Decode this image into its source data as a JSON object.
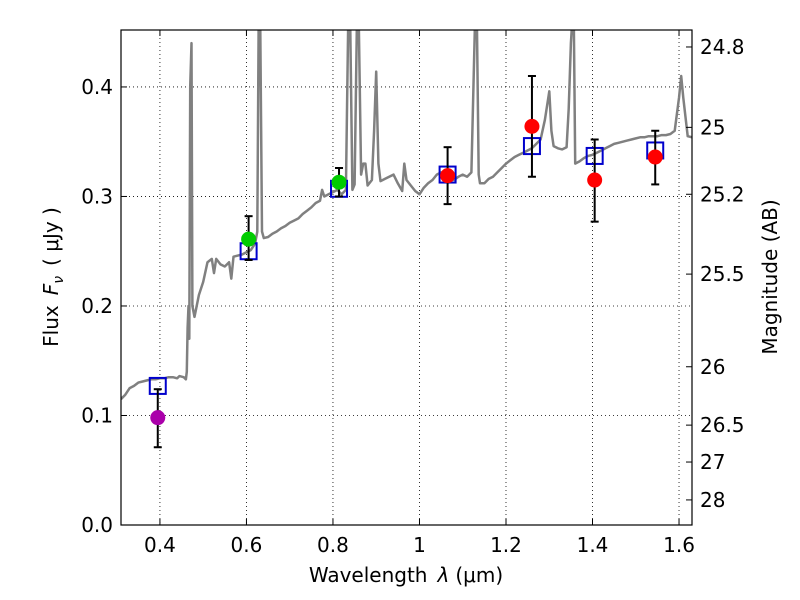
{
  "chart_data": {
    "type": "scatter",
    "xlabel_prefix": "Wavelength",
    "xlabel_symbol": "λ",
    "xlabel_unit": "(μm)",
    "ylabel_prefix": "Flux",
    "ylabel_symbol": "F",
    "ylabel_subscript": "ν",
    "ylabel_unit": "( μJy )",
    "y2label": "Magnitude (AB)",
    "xlim": [
      0.31,
      1.63
    ],
    "ylim": [
      0.0,
      0.452
    ],
    "xticks": [
      0.4,
      0.6,
      0.8,
      1.0,
      1.2,
      1.4,
      1.6
    ],
    "xtick_labels": [
      "0.4",
      "0.6",
      "0.8",
      "1",
      "1.2",
      "1.4",
      "1.6"
    ],
    "yticks": [
      0.0,
      0.1,
      0.2,
      0.3,
      0.4
    ],
    "ytick_labels": [
      "0.0",
      "0.1",
      "0.2",
      "0.3",
      "0.4"
    ],
    "y2ticks": [
      {
        "label": "24.8",
        "flux": 0.4365
      },
      {
        "label": "25",
        "flux": 0.3631
      },
      {
        "label": "25.2",
        "flux": 0.302
      },
      {
        "label": "25.5",
        "flux": 0.2291
      },
      {
        "label": "26",
        "flux": 0.1445
      },
      {
        "label": "26.5",
        "flux": 0.0912
      },
      {
        "label": "27",
        "flux": 0.0575
      },
      {
        "label": "28",
        "flux": 0.0229
      }
    ],
    "grid": true,
    "colors": {
      "model": "#808080",
      "model_points": "#0000cc",
      "uv": "#aa00aa",
      "optical": "#00cc00",
      "nir": "#ff0000",
      "errorbar": "#000000"
    },
    "model_points": [
      {
        "x": 0.395,
        "y": 0.127
      },
      {
        "x": 0.605,
        "y": 0.25
      },
      {
        "x": 0.814,
        "y": 0.307
      },
      {
        "x": 1.065,
        "y": 0.32
      },
      {
        "x": 1.26,
        "y": 0.346
      },
      {
        "x": 1.405,
        "y": 0.337
      },
      {
        "x": 1.545,
        "y": 0.342
      }
    ],
    "observations": [
      {
        "x": 0.395,
        "y": 0.098,
        "ylo": 0.071,
        "yhi": 0.124,
        "group": "uv"
      },
      {
        "x": 0.605,
        "y": 0.261,
        "ylo": 0.242,
        "yhi": 0.282,
        "group": "optical"
      },
      {
        "x": 0.814,
        "y": 0.313,
        "ylo": 0.3,
        "yhi": 0.326,
        "group": "optical"
      },
      {
        "x": 1.065,
        "y": 0.319,
        "ylo": 0.293,
        "yhi": 0.345,
        "group": "nir"
      },
      {
        "x": 1.26,
        "y": 0.364,
        "ylo": 0.318,
        "yhi": 0.41,
        "group": "nir"
      },
      {
        "x": 1.405,
        "y": 0.315,
        "ylo": 0.277,
        "yhi": 0.352,
        "group": "nir"
      },
      {
        "x": 1.545,
        "y": 0.336,
        "ylo": 0.311,
        "yhi": 0.36,
        "group": "nir"
      }
    ],
    "model_spectrum": [
      [
        0.31,
        0.115
      ],
      [
        0.32,
        0.119
      ],
      [
        0.33,
        0.125
      ],
      [
        0.34,
        0.127
      ],
      [
        0.35,
        0.13
      ],
      [
        0.36,
        0.131
      ],
      [
        0.37,
        0.132
      ],
      [
        0.38,
        0.133
      ],
      [
        0.39,
        0.133
      ],
      [
        0.4,
        0.134
      ],
      [
        0.41,
        0.134
      ],
      [
        0.42,
        0.135
      ],
      [
        0.43,
        0.135
      ],
      [
        0.44,
        0.134
      ],
      [
        0.445,
        0.136
      ],
      [
        0.455,
        0.135
      ],
      [
        0.46,
        0.133
      ],
      [
        0.462,
        0.14
      ],
      [
        0.464,
        0.18
      ],
      [
        0.466,
        0.2
      ],
      [
        0.468,
        0.17
      ],
      [
        0.47,
        0.4
      ],
      [
        0.473,
        0.44
      ],
      [
        0.475,
        0.2
      ],
      [
        0.48,
        0.19
      ],
      [
        0.49,
        0.21
      ],
      [
        0.5,
        0.222
      ],
      [
        0.51,
        0.24
      ],
      [
        0.52,
        0.243
      ],
      [
        0.525,
        0.23
      ],
      [
        0.53,
        0.243
      ],
      [
        0.54,
        0.238
      ],
      [
        0.55,
        0.236
      ],
      [
        0.56,
        0.24
      ],
      [
        0.565,
        0.225
      ],
      [
        0.57,
        0.245
      ],
      [
        0.58,
        0.246
      ],
      [
        0.59,
        0.247
      ],
      [
        0.6,
        0.249
      ],
      [
        0.61,
        0.251
      ],
      [
        0.62,
        0.257
      ],
      [
        0.625,
        0.268
      ],
      [
        0.628,
        0.452
      ],
      [
        0.632,
        0.452
      ],
      [
        0.636,
        0.268
      ],
      [
        0.64,
        0.262
      ],
      [
        0.65,
        0.263
      ],
      [
        0.66,
        0.266
      ],
      [
        0.67,
        0.268
      ],
      [
        0.68,
        0.271
      ],
      [
        0.69,
        0.273
      ],
      [
        0.7,
        0.276
      ],
      [
        0.71,
        0.278
      ],
      [
        0.72,
        0.28
      ],
      [
        0.73,
        0.284
      ],
      [
        0.74,
        0.287
      ],
      [
        0.75,
        0.29
      ],
      [
        0.76,
        0.294
      ],
      [
        0.77,
        0.296
      ],
      [
        0.775,
        0.306
      ],
      [
        0.78,
        0.3
      ],
      [
        0.79,
        0.302
      ],
      [
        0.8,
        0.304
      ],
      [
        0.81,
        0.306
      ],
      [
        0.82,
        0.302
      ],
      [
        0.83,
        0.306
      ],
      [
        0.835,
        0.452
      ],
      [
        0.84,
        0.452
      ],
      [
        0.845,
        0.306
      ],
      [
        0.85,
        0.311
      ],
      [
        0.855,
        0.452
      ],
      [
        0.86,
        0.452
      ],
      [
        0.865,
        0.32
      ],
      [
        0.87,
        0.33
      ],
      [
        0.875,
        0.33
      ],
      [
        0.88,
        0.31
      ],
      [
        0.89,
        0.315
      ],
      [
        0.895,
        0.36
      ],
      [
        0.9,
        0.414
      ],
      [
        0.905,
        0.33
      ],
      [
        0.91,
        0.314
      ],
      [
        0.92,
        0.316
      ],
      [
        0.93,
        0.318
      ],
      [
        0.94,
        0.32
      ],
      [
        0.95,
        0.312
      ],
      [
        0.96,
        0.305
      ],
      [
        0.965,
        0.33
      ],
      [
        0.97,
        0.315
      ],
      [
        0.98,
        0.31
      ],
      [
        0.99,
        0.305
      ],
      [
        1.0,
        0.302
      ],
      [
        1.01,
        0.308
      ],
      [
        1.02,
        0.312
      ],
      [
        1.03,
        0.315
      ],
      [
        1.04,
        0.32
      ],
      [
        1.05,
        0.322
      ],
      [
        1.06,
        0.32
      ],
      [
        1.07,
        0.318
      ],
      [
        1.08,
        0.315
      ],
      [
        1.09,
        0.318
      ],
      [
        1.1,
        0.32
      ],
      [
        1.11,
        0.318
      ],
      [
        1.12,
        0.322
      ],
      [
        1.128,
        0.452
      ],
      [
        1.133,
        0.452
      ],
      [
        1.137,
        0.32
      ],
      [
        1.14,
        0.312
      ],
      [
        1.15,
        0.312
      ],
      [
        1.16,
        0.316
      ],
      [
        1.17,
        0.318
      ],
      [
        1.18,
        0.322
      ],
      [
        1.19,
        0.326
      ],
      [
        1.2,
        0.33
      ],
      [
        1.21,
        0.333
      ],
      [
        1.22,
        0.336
      ],
      [
        1.23,
        0.338
      ],
      [
        1.24,
        0.34
      ],
      [
        1.25,
        0.342
      ],
      [
        1.26,
        0.344
      ],
      [
        1.27,
        0.348
      ],
      [
        1.28,
        0.352
      ],
      [
        1.29,
        0.37
      ],
      [
        1.3,
        0.396
      ],
      [
        1.305,
        0.36
      ],
      [
        1.31,
        0.346
      ],
      [
        1.32,
        0.344
      ],
      [
        1.33,
        0.343
      ],
      [
        1.34,
        0.345
      ],
      [
        1.345,
        0.38
      ],
      [
        1.35,
        0.44
      ],
      [
        1.352,
        0.452
      ],
      [
        1.357,
        0.452
      ],
      [
        1.36,
        0.33
      ],
      [
        1.37,
        0.332
      ],
      [
        1.38,
        0.335
      ],
      [
        1.39,
        0.337
      ],
      [
        1.4,
        0.338
      ],
      [
        1.41,
        0.34
      ],
      [
        1.42,
        0.342
      ],
      [
        1.43,
        0.344
      ],
      [
        1.44,
        0.346
      ],
      [
        1.45,
        0.348
      ],
      [
        1.46,
        0.349
      ],
      [
        1.47,
        0.35
      ],
      [
        1.48,
        0.351
      ],
      [
        1.49,
        0.352
      ],
      [
        1.5,
        0.353
      ],
      [
        1.51,
        0.354
      ],
      [
        1.52,
        0.354
      ],
      [
        1.53,
        0.355
      ],
      [
        1.54,
        0.355
      ],
      [
        1.55,
        0.355
      ],
      [
        1.56,
        0.356
      ],
      [
        1.57,
        0.356
      ],
      [
        1.58,
        0.357
      ],
      [
        1.59,
        0.36
      ],
      [
        1.6,
        0.39
      ],
      [
        1.605,
        0.41
      ],
      [
        1.61,
        0.39
      ],
      [
        1.62,
        0.355
      ],
      [
        1.63,
        0.354
      ]
    ]
  }
}
